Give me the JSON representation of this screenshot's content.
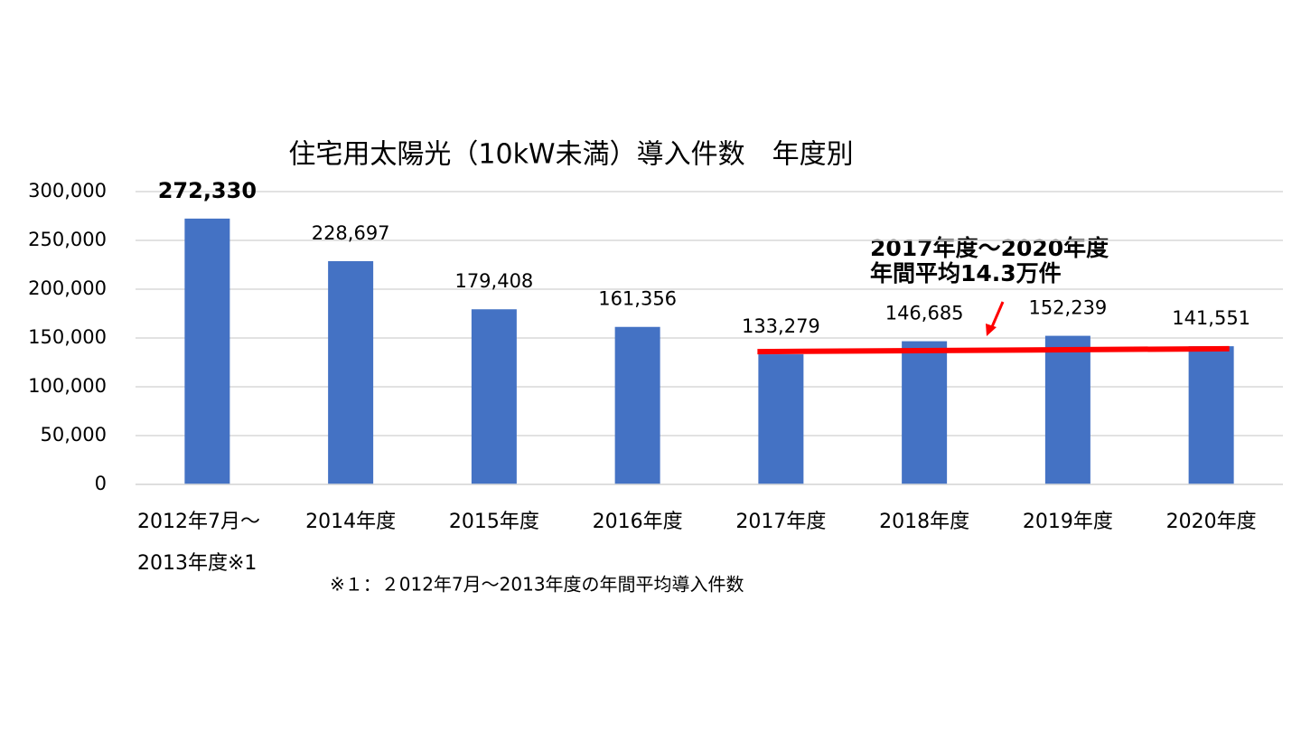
{
  "chart_data": {
    "type": "bar",
    "title": "住宅用太陽光（10kW未満）導入件数　年度別",
    "categories": [
      "2012年7月～\n2013年度※1",
      "2014年度",
      "2015年度",
      "2016年度",
      "2017年度",
      "2018年度",
      "2019年度",
      "2020年度"
    ],
    "values": [
      272330,
      228697,
      179408,
      161356,
      133279,
      146685,
      152239,
      141551
    ],
    "value_labels": [
      "272,330",
      "228,697",
      "179,408",
      "161,356",
      "133,279",
      "146,685",
      "152,239",
      "141,551"
    ],
    "color": "#4472c4",
    "highlight_index": 0,
    "highlight_color": "#ff0000",
    "ylim": [
      0,
      300000
    ],
    "yticks": [
      0,
      {
        "value": 50000,
        "label": "50,000"
      },
      {
        "value": 100000,
        "label": "100,000"
      },
      {
        "value": 150000,
        "label": "150,000"
      },
      {
        "value": 200000,
        "label": "200,000"
      },
      {
        "value": 250000,
        "label": "250,000"
      },
      {
        "value": 300000,
        "label": "300,000"
      }
    ],
    "grid": true,
    "trend_line": {
      "start": 4,
      "end": 7,
      "values": [
        136000,
        139000
      ],
      "color": "#ff0000"
    },
    "annotation": [
      "2017年度～2020年度",
      "年間平均14.3万件"
    ],
    "footnote": "※１：２012年7月～2013年度の年間平均導入件数"
  }
}
